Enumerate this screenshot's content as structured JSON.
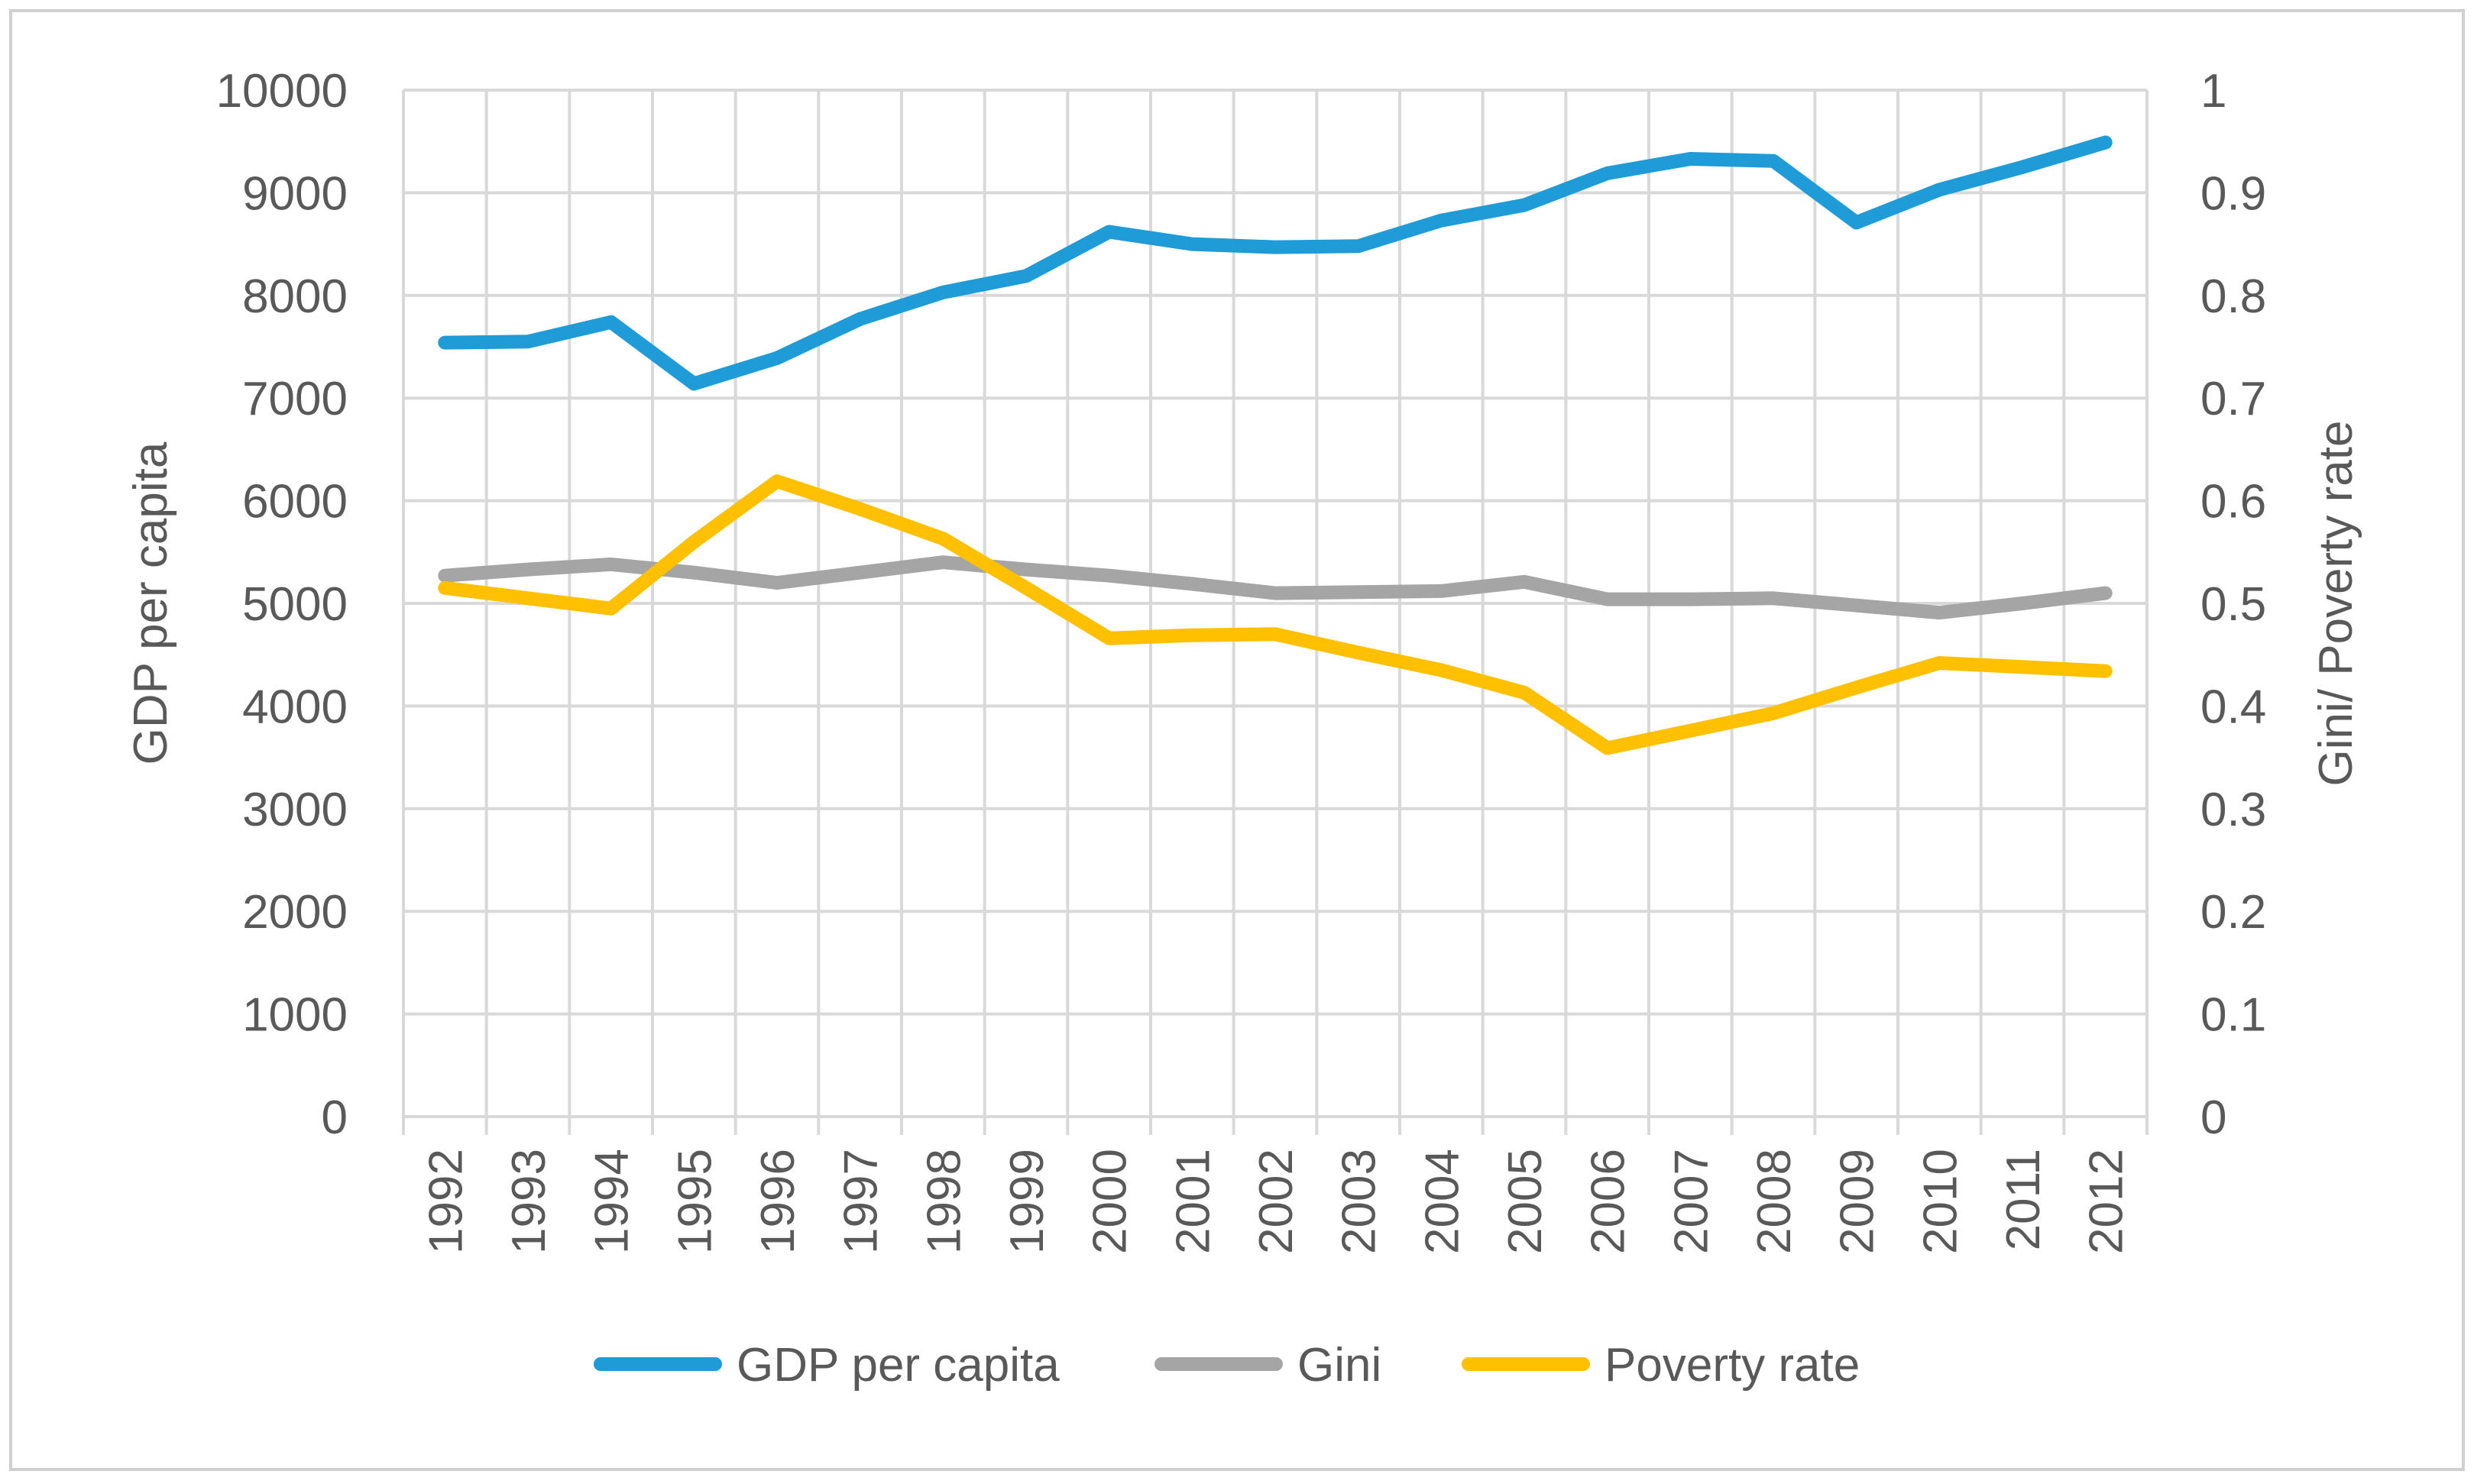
{
  "chart_data": {
    "type": "line",
    "title": "",
    "categories": [
      "1992",
      "1993",
      "1994",
      "1995",
      "1996",
      "1997",
      "1998",
      "1999",
      "2000",
      "2001",
      "2002",
      "2003",
      "2004",
      "2005",
      "2006",
      "2007",
      "2008",
      "2009",
      "2010",
      "2011",
      "2012"
    ],
    "y_left": {
      "label": "GDP per capita",
      "range": [
        0,
        10000
      ],
      "ticks": [
        0,
        1000,
        2000,
        3000,
        4000,
        5000,
        6000,
        7000,
        8000,
        9000,
        10000
      ],
      "tick_labels": [
        "0",
        "1000",
        "2000",
        "3000",
        "4000",
        "5000",
        "6000",
        "7000",
        "8000",
        "9000",
        "10000"
      ]
    },
    "y_right": {
      "label": "Gini/ Poverty rate",
      "range": [
        0,
        1
      ],
      "ticks": [
        0,
        0.1,
        0.2,
        0.3,
        0.4,
        0.5,
        0.6,
        0.7,
        0.8,
        0.9,
        1
      ],
      "tick_labels": [
        "0",
        "0.1",
        "0.2",
        "0.3",
        "0.4",
        "0.5",
        "0.6",
        "0.7",
        "0.8",
        "0.9",
        "1"
      ]
    },
    "grid": true,
    "legend_position": "bottom",
    "series": [
      {
        "name": "GDP per capita",
        "axis": "left",
        "color": "#1F9BD7",
        "values": [
          7540,
          7550,
          7740,
          7140,
          7390,
          7770,
          8030,
          8190,
          8620,
          8500,
          8470,
          8480,
          8730,
          8880,
          9190,
          9330,
          9310,
          8710,
          9030,
          9250,
          9490
        ]
      },
      {
        "name": "Gini",
        "axis": "right",
        "color": "#A5A5A5",
        "values": [
          0.527,
          0.533,
          0.538,
          0.53,
          0.52,
          0.53,
          0.54,
          0.533,
          0.527,
          0.519,
          0.51,
          0.511,
          0.512,
          0.521,
          0.504,
          0.504,
          0.505,
          0.498,
          0.491,
          0.5,
          0.51
        ]
      },
      {
        "name": "Poverty rate",
        "axis": "right",
        "color": "#FFC000",
        "values": [
          0.515,
          0.505,
          0.495,
          0.56,
          0.619,
          0.592,
          0.563,
          0.515,
          0.466,
          0.469,
          0.47,
          0.452,
          0.435,
          0.413,
          0.359,
          0.376,
          0.393,
          0.418,
          0.442,
          0.438,
          0.434
        ]
      }
    ]
  }
}
